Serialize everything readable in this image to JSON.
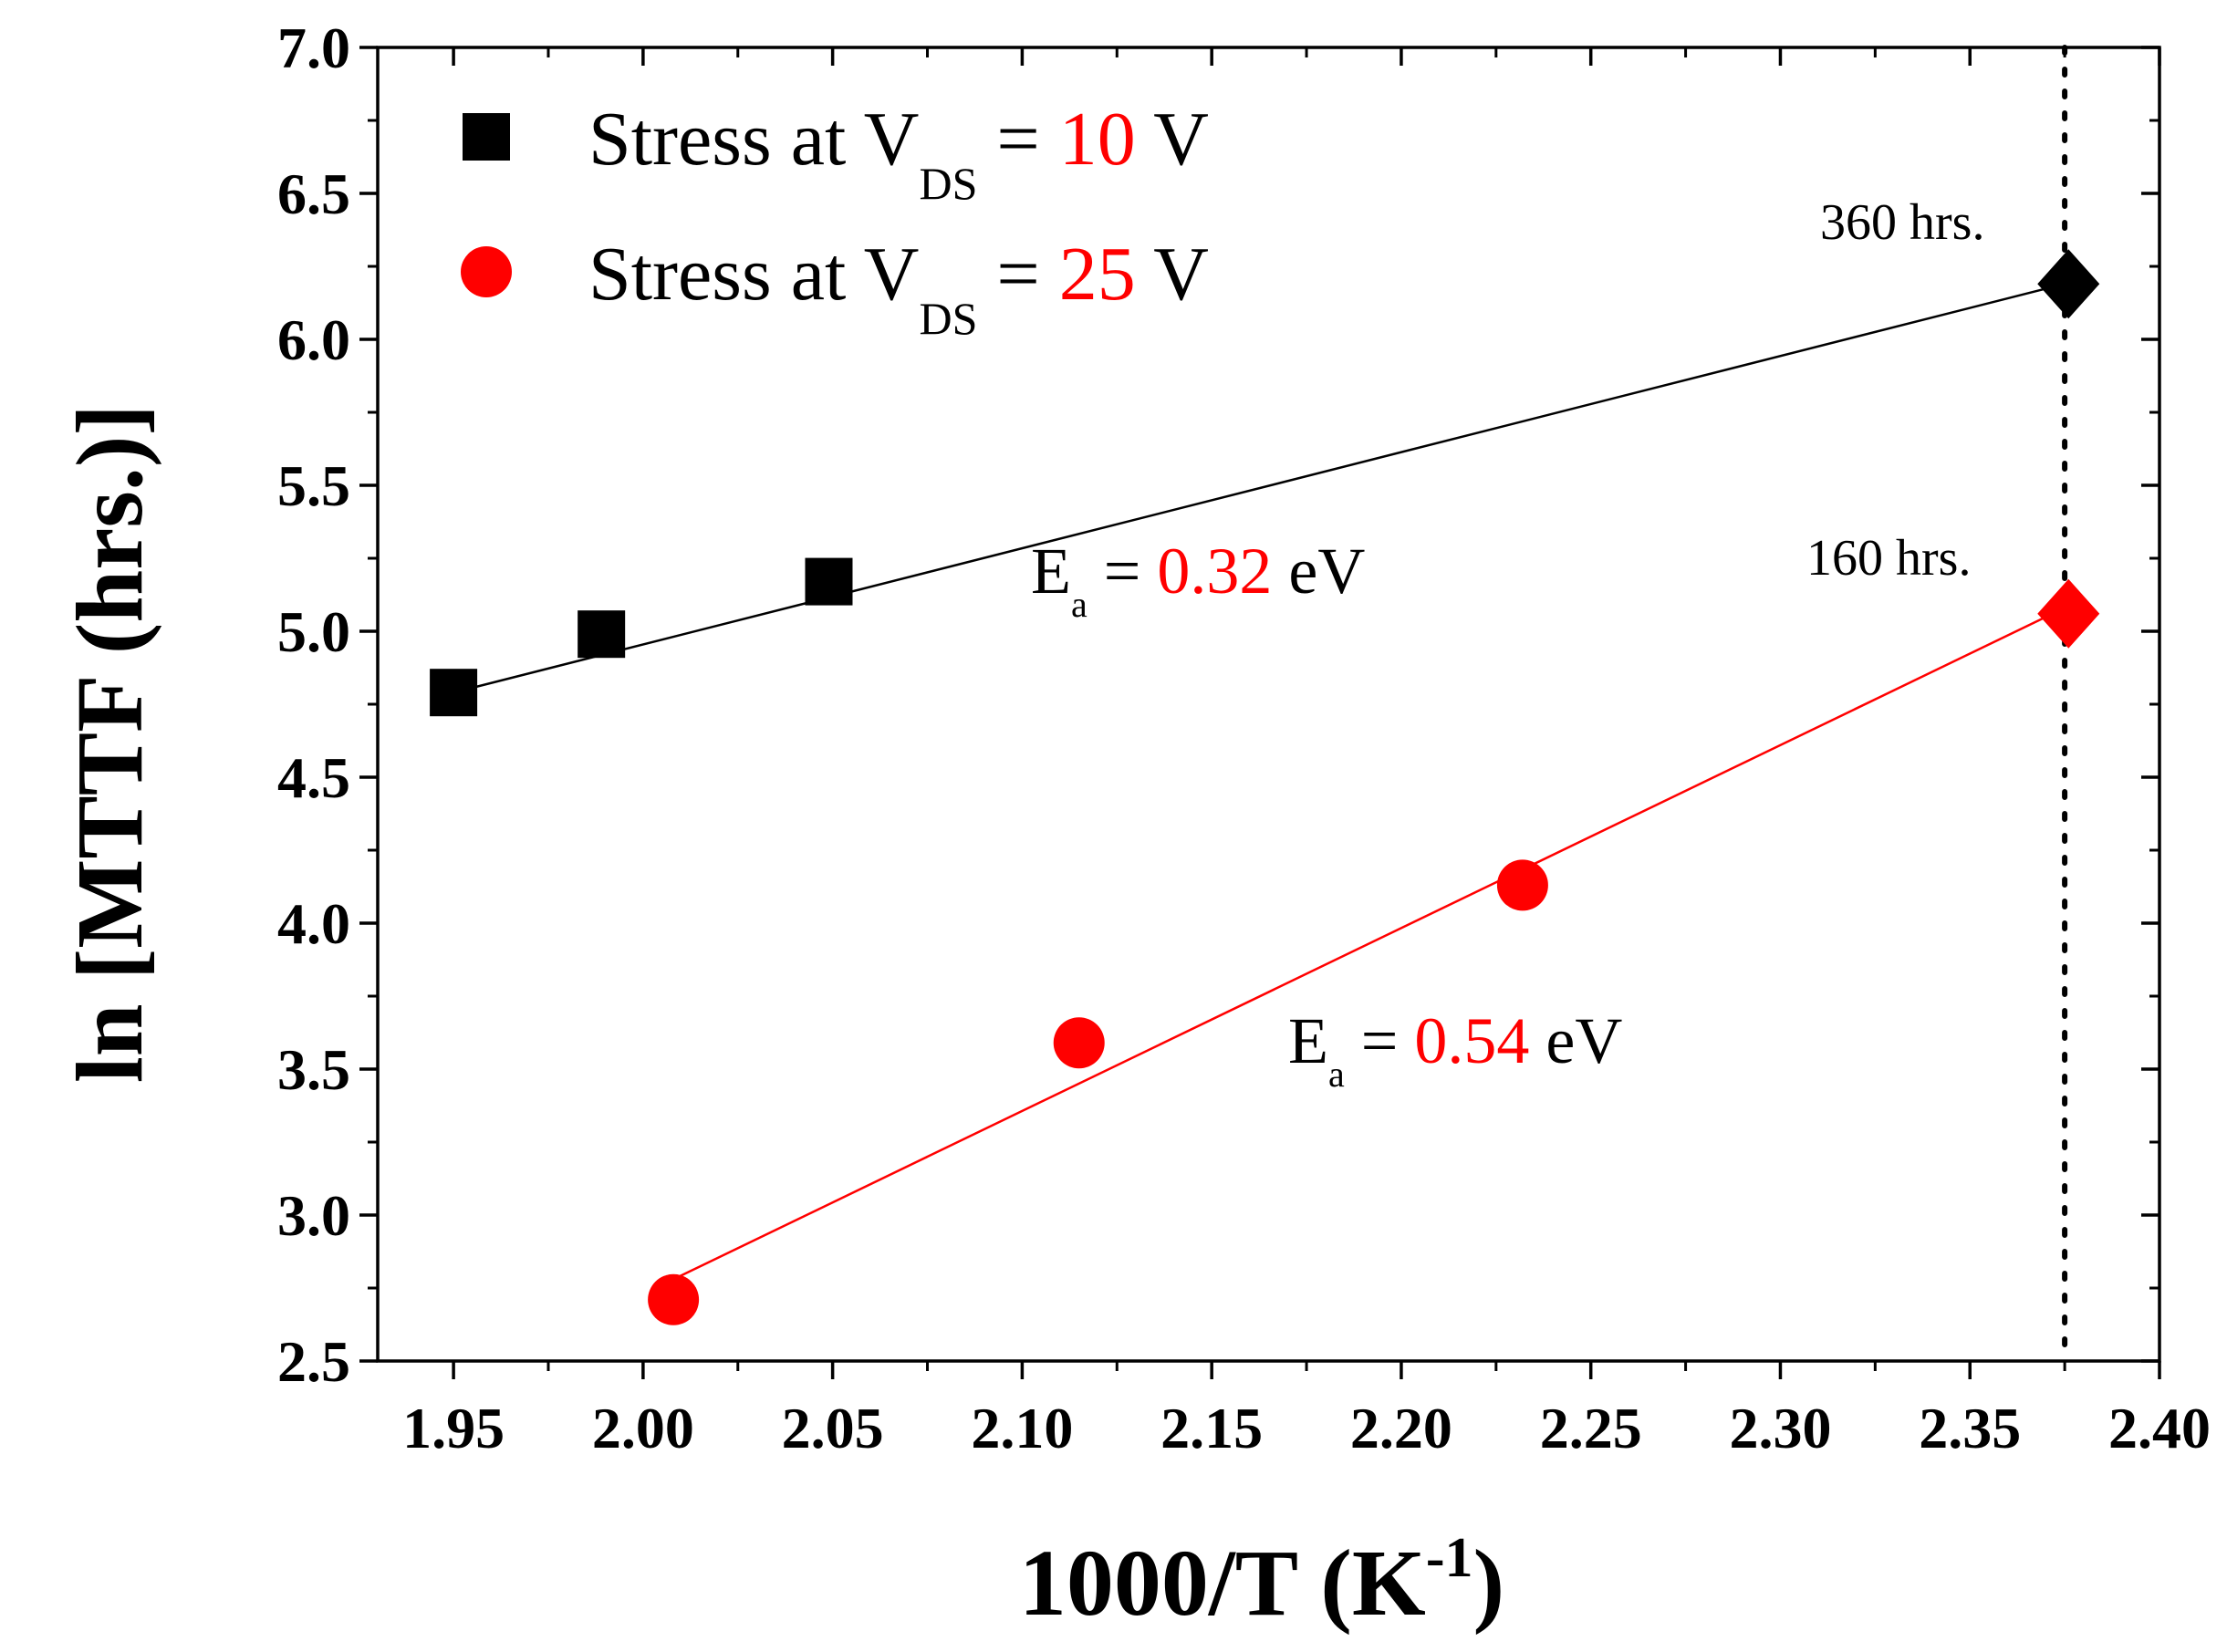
{
  "chart_data": {
    "type": "scatter",
    "xlabel": {
      "main": "1000/T (K",
      "sup": "-1",
      "tail": ")"
    },
    "ylabel": "ln [MTTF (hrs.)]",
    "xlim": [
      1.93,
      2.4
    ],
    "ylim": [
      2.5,
      7.0
    ],
    "x_ticks": [
      "1.95",
      "2.00",
      "2.05",
      "2.10",
      "2.15",
      "2.20",
      "2.25",
      "2.30",
      "2.35",
      "2.40"
    ],
    "y_ticks": [
      "2.5",
      "3.0",
      "3.5",
      "4.0",
      "4.5",
      "5.0",
      "5.5",
      "6.0",
      "6.5",
      "7.0"
    ],
    "series": [
      {
        "name": {
          "prefix": "Stress at V",
          "sub": "DS",
          "eq": " = ",
          "value": "10",
          "unit": " V"
        },
        "color": "#000000",
        "marker": "square",
        "points": [
          {
            "x": 1.95,
            "y": 4.79
          },
          {
            "x": 1.989,
            "y": 4.99
          },
          {
            "x": 2.049,
            "y": 5.17
          }
        ],
        "fit_line": [
          {
            "x": 1.95,
            "y": 4.79
          },
          {
            "x": 2.375,
            "y": 6.19
          }
        ],
        "extrapolated": {
          "x": 2.376,
          "y": 6.19,
          "marker": "diamond",
          "label": "360 hrs."
        },
        "activation": {
          "prefix": "E",
          "sub": "a",
          "eq": " = ",
          "value": "0.32",
          "unit": " eV"
        }
      },
      {
        "name": {
          "prefix": "Stress at V",
          "sub": "DS",
          "eq": " = ",
          "value": "25",
          "unit": " V"
        },
        "color": "#ff0000",
        "marker": "circle",
        "points": [
          {
            "x": 2.008,
            "y": 2.71
          },
          {
            "x": 2.115,
            "y": 3.59
          },
          {
            "x": 2.232,
            "y": 4.13
          }
        ],
        "fit_line": [
          {
            "x": 2.008,
            "y": 2.78
          },
          {
            "x": 2.375,
            "y": 5.08
          }
        ],
        "extrapolated": {
          "x": 2.376,
          "y": 5.06,
          "marker": "diamond",
          "label": "160 hrs."
        },
        "activation": {
          "prefix": "E",
          "sub": "a",
          "eq": " = ",
          "value": "0.54",
          "unit": " eV"
        }
      }
    ],
    "reference_line": {
      "x": 2.375,
      "style": "dotted"
    },
    "legend_position": "top-left",
    "grid": false
  }
}
